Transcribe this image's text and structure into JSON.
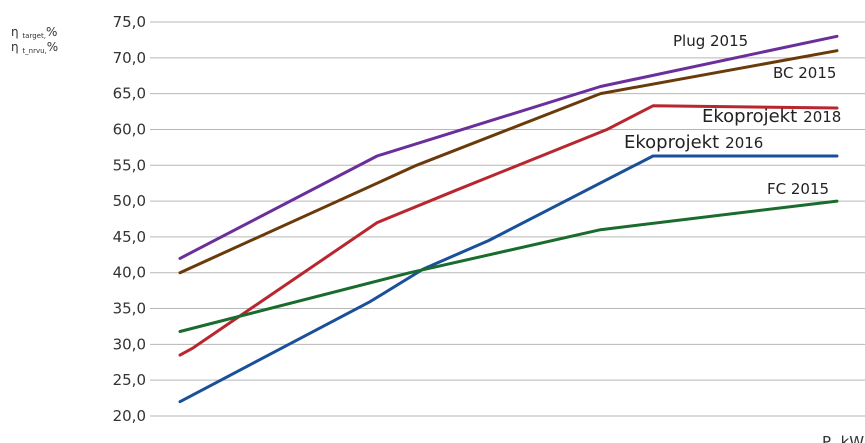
{
  "chart_data": {
    "type": "line",
    "ylabel_lines": [
      {
        "main": "η",
        "sub": "target,",
        "unit": "%"
      },
      {
        "main": "η",
        "sub": "t_nrvu,",
        "unit": "%"
      }
    ],
    "xlabel": "P, kW",
    "ylim": [
      20,
      75
    ],
    "yticks": [
      "75,0",
      "70,0",
      "65,0",
      "60,0",
      "55,0",
      "50,0",
      "45,0",
      "40,0",
      "35,0",
      "30,0",
      "25,0",
      "20,0"
    ],
    "grid": true,
    "series": [
      {
        "name": "Plug 2015",
        "color": "#6a2f9a",
        "points": [
          [
            0.0,
            42.0
          ],
          [
            0.3,
            56.3
          ],
          [
            0.64,
            66.0
          ],
          [
            1.0,
            73.0
          ]
        ]
      },
      {
        "name": "BC 2015",
        "color": "#6b3a0a",
        "points": [
          [
            0.0,
            40.0
          ],
          [
            0.36,
            55.0
          ],
          [
            0.64,
            65.0
          ],
          [
            1.0,
            71.0
          ]
        ]
      },
      {
        "name": "Ekoprojekt 2018",
        "color": "#b8272f",
        "points": [
          [
            0.0,
            28.5
          ],
          [
            0.02,
            29.5
          ],
          [
            0.3,
            47.0
          ],
          [
            0.42,
            51.5
          ],
          [
            0.65,
            60.0
          ],
          [
            0.72,
            63.3
          ],
          [
            1.0,
            63.0
          ]
        ]
      },
      {
        "name": "Ekoprojekt 2016",
        "color": "#1a4f9a",
        "points": [
          [
            0.0,
            22.0
          ],
          [
            0.29,
            36.0
          ],
          [
            0.37,
            40.5
          ],
          [
            0.47,
            44.5
          ],
          [
            0.72,
            56.3
          ],
          [
            1.0,
            56.3
          ]
        ]
      },
      {
        "name": "FC 2015",
        "color": "#1a6b2e",
        "points": [
          [
            0.0,
            31.8
          ],
          [
            0.35,
            40.0
          ],
          [
            0.64,
            46.0
          ],
          [
            1.0,
            50.0
          ]
        ]
      }
    ],
    "labels": [
      {
        "text_main": "Plug 2015",
        "text_year": "",
        "series": 0
      },
      {
        "text_main": "BC 2015",
        "text_year": "",
        "series": 1
      },
      {
        "text_main": "Ekoprojekt",
        "text_year": "2018",
        "series": 2
      },
      {
        "text_main": "Ekoprojekt",
        "text_year": "2016",
        "series": 3
      },
      {
        "text_main": "FC 2015",
        "text_year": "",
        "series": 4
      }
    ]
  }
}
